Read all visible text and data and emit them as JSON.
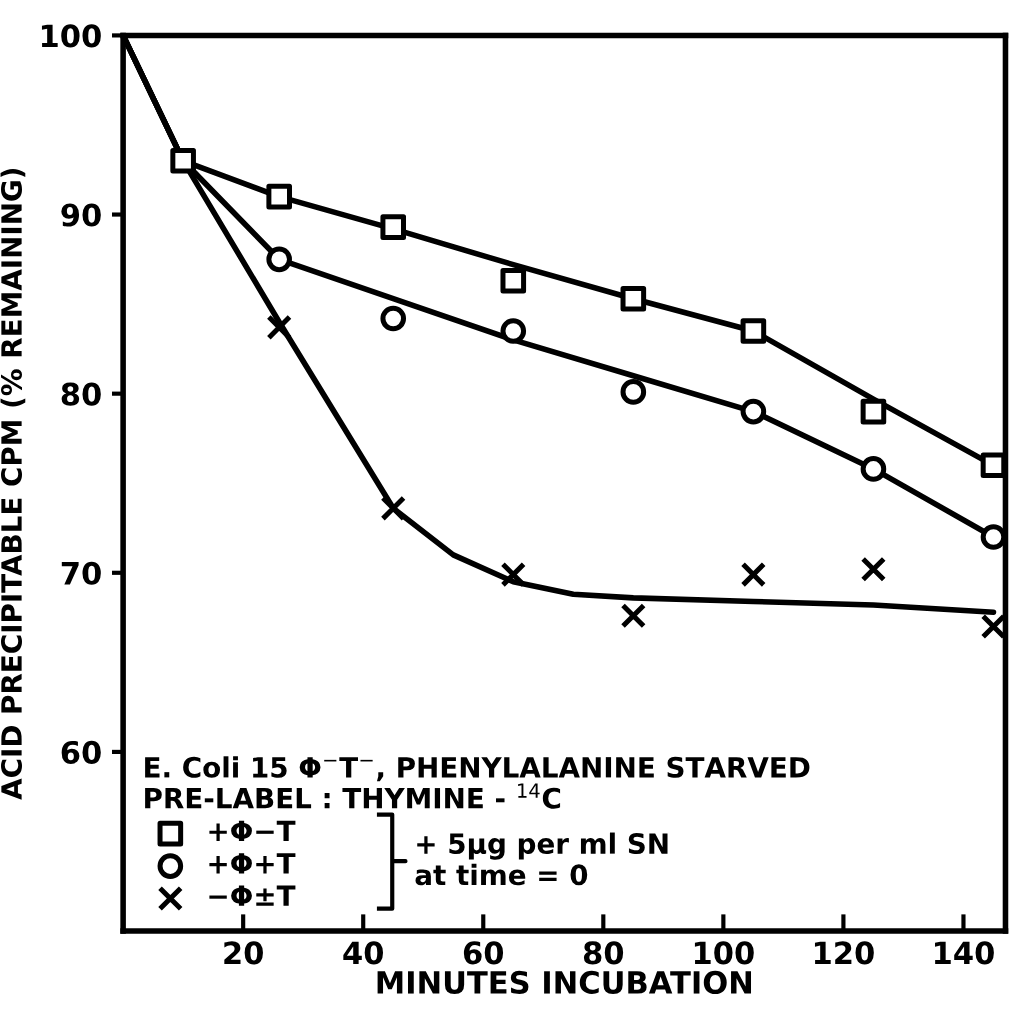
{
  "chart_data": {
    "type": "scatter",
    "xlabel": "MINUTES INCUBATION",
    "ylabel": "ACID PRECIPITABLE CPM (% REMAINING)",
    "xlim": [
      0,
      147
    ],
    "ylim": [
      50,
      100
    ],
    "xticks": [
      20,
      40,
      60,
      80,
      100,
      120,
      140
    ],
    "yticks": [
      60,
      70,
      80,
      90,
      100
    ],
    "grid": false,
    "legend": "bottom left",
    "legend_title": "E. Coli 15 Φ$^{−}$T$^{−}$, PHENYLALANINE STARVED\nPRE-LABEL : THYMINE - $^{14}$C",
    "annotations": [
      "+ 5µg per ml SN\nat time = 0"
    ],
    "series": [
      {
        "name": "+Φ−T",
        "marker": "square",
        "color": "#000000",
        "x": [
          10,
          26,
          45,
          65,
          85,
          105,
          125,
          145
        ],
        "values": [
          93,
          91,
          89.3,
          86.3,
          85.3,
          83.5,
          79,
          76
        ]
      },
      {
        "name": "+Φ+T",
        "marker": "circle",
        "color": "#000000",
        "x": [
          26,
          45,
          65,
          85,
          105,
          125,
          145
        ],
        "values": [
          87.5,
          84.2,
          83.5,
          80.1,
          79,
          75.8,
          72
        ]
      },
      {
        "name": "−Φ±T",
        "marker": "cross",
        "color": "#000000",
        "x": [
          26,
          45,
          65,
          85,
          105,
          125,
          145
        ],
        "values": [
          83.7,
          73.6,
          69.9,
          67.6,
          69.9,
          70.2,
          67
        ]
      },
      {
        "type": "line",
        "marker": "none",
        "color": "#000000",
        "x": [
          0,
          10,
          26,
          45,
          65,
          85,
          105,
          125,
          145
        ],
        "values": [
          100,
          93,
          91,
          89.2,
          87.2,
          85.3,
          83.5,
          79.7,
          76
        ]
      },
      {
        "type": "line",
        "marker": "none",
        "color": "#000000",
        "x": [
          0,
          10,
          26,
          45,
          65,
          85,
          105,
          125,
          145
        ],
        "values": [
          100,
          93,
          87.5,
          85.3,
          83,
          81,
          79,
          75.8,
          72
        ]
      },
      {
        "type": "line",
        "marker": "none",
        "color": "#000000",
        "x": [
          0,
          10,
          26,
          45,
          55,
          65,
          75,
          85,
          105,
          125,
          145
        ],
        "values": [
          100,
          93,
          84,
          73.6,
          71,
          69.5,
          68.8,
          68.6,
          68.4,
          68.2,
          67.8
        ]
      }
    ]
  }
}
